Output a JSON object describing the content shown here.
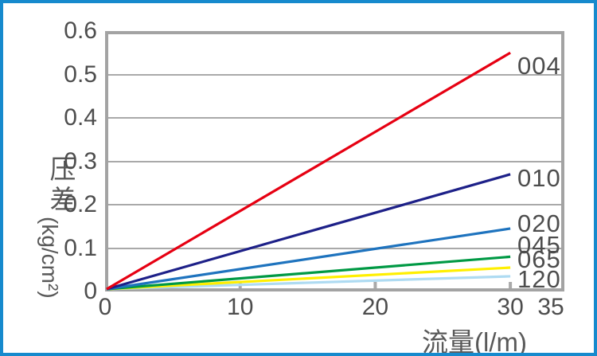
{
  "frame": {
    "border_color": "#168acd",
    "background": "#ffffff"
  },
  "chart_data": {
    "type": "line",
    "title": "",
    "xlabel": "流量(l/m)",
    "ylabel": "压差 (kg/cm²)",
    "ylabel_parts": {
      "cn": "压差",
      "unit": "(kg/cm²)"
    },
    "xlim": [
      0,
      35
    ],
    "ylim": [
      0,
      0.6
    ],
    "x_ticks": [
      0,
      10,
      20,
      30,
      35
    ],
    "y_ticks": [
      0.6,
      0.5,
      0.4,
      0.3,
      0.2,
      0.1,
      0
    ],
    "grid": "horizontal-only",
    "grid_color": "#a9a9a9",
    "legend_position": "inline-right-of-lines",
    "series": [
      {
        "name": "004",
        "color": "#e60012",
        "x": [
          0,
          30
        ],
        "y": [
          0,
          0.55
        ],
        "label_y": 0.52
      },
      {
        "name": "010",
        "color": "#1d2088",
        "x": [
          0,
          30
        ],
        "y": [
          0,
          0.27
        ],
        "label_y": 0.26
      },
      {
        "name": "020",
        "color": "#1e73be",
        "x": [
          0,
          30
        ],
        "y": [
          0,
          0.145
        ],
        "label_y": 0.156
      },
      {
        "name": "045",
        "color": "#009944",
        "x": [
          0,
          30
        ],
        "y": [
          0,
          0.08
        ],
        "label_y": 0.106
      },
      {
        "name": "065",
        "color": "#ffef00",
        "x": [
          0,
          30
        ],
        "y": [
          0,
          0.055
        ],
        "label_y": 0.073
      },
      {
        "name": "120",
        "color": "#aedbf2",
        "x": [
          0,
          30
        ],
        "y": [
          0,
          0.035
        ],
        "label_y": 0.028
      }
    ]
  }
}
